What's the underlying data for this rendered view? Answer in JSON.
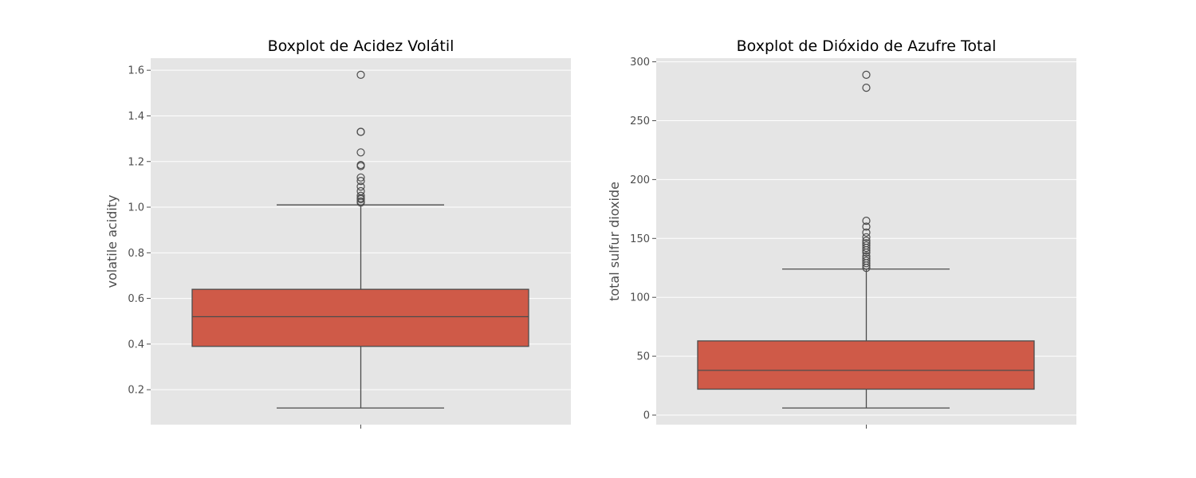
{
  "chart_data": [
    {
      "type": "box",
      "title": "Boxplot de Acidez Volátil",
      "xlabel": "",
      "ylabel": "volatile acidity",
      "ylim": [
        0.047,
        1.653
      ],
      "yticks": [
        0.2,
        0.4,
        0.6,
        0.8,
        1.0,
        1.2,
        1.4,
        1.6
      ],
      "ytick_labels": [
        "0.2",
        "0.4",
        "0.6",
        "0.8",
        "1.0",
        "1.2",
        "1.4",
        "1.6"
      ],
      "grid": true,
      "box": {
        "whisker_low": 0.12,
        "q1": 0.39,
        "median": 0.52,
        "q3": 0.64,
        "whisker_high": 1.01
      },
      "outliers": [
        1.02,
        1.025,
        1.035,
        1.04,
        1.05,
        1.07,
        1.09,
        1.115,
        1.13,
        1.18,
        1.185,
        1.24,
        1.33,
        1.33,
        1.58
      ]
    },
    {
      "type": "box",
      "title": "Boxplot de Dióxido de Azufre Total",
      "xlabel": "",
      "ylabel": "total sulfur dioxide",
      "ylim": [
        -8.1,
        303.1
      ],
      "yticks": [
        0,
        50,
        100,
        150,
        200,
        250,
        300
      ],
      "ytick_labels": [
        "0",
        "50",
        "100",
        "150",
        "200",
        "250",
        "300"
      ],
      "grid": true,
      "box": {
        "whisker_low": 6,
        "q1": 22,
        "median": 38,
        "q3": 63,
        "whisker_high": 124
      },
      "outliers": [
        125,
        127,
        129,
        131,
        133,
        135,
        138,
        140,
        142,
        144,
        146,
        148,
        151,
        155,
        160,
        165,
        278,
        289
      ]
    }
  ],
  "colors": {
    "box_fill": "#cf5a48",
    "line": "#4c4c4c",
    "plot_bg": "#e5e5e5",
    "grid": "#ffffff"
  }
}
